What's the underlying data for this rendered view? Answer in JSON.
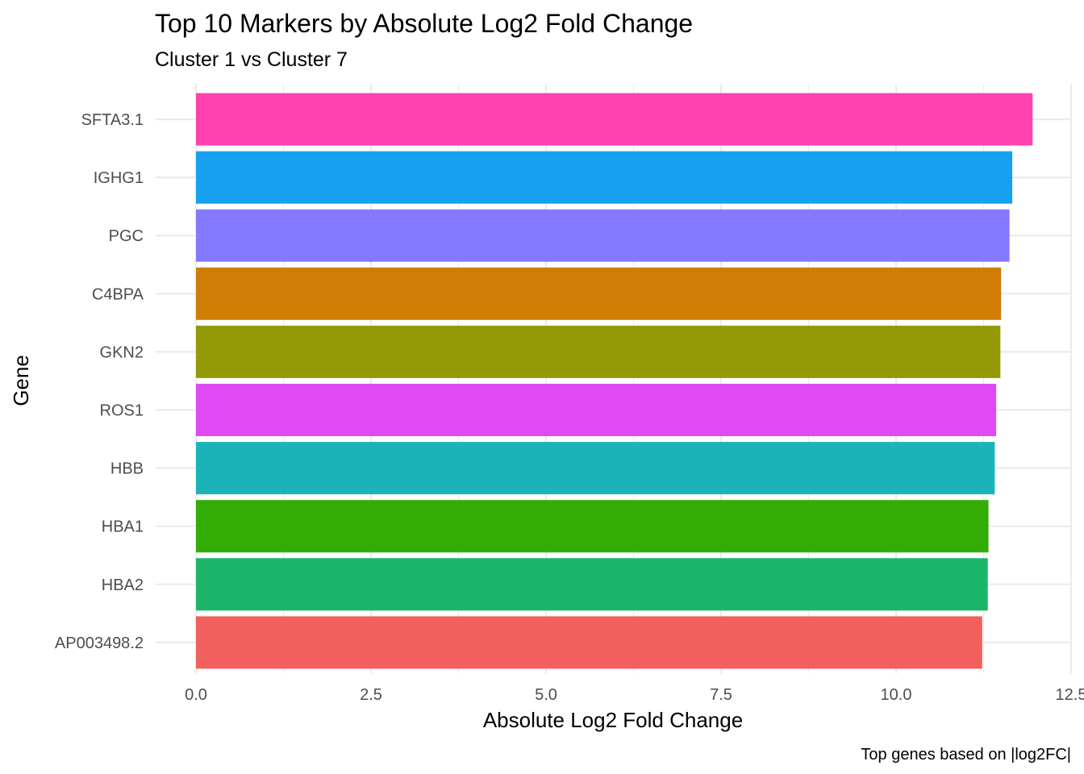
{
  "chart_data": {
    "type": "bar",
    "orientation": "horizontal",
    "title": "Top 10 Markers by Absolute Log2 Fold Change",
    "subtitle": "Cluster 1 vs Cluster 7",
    "xlabel": "Absolute Log2 Fold Change",
    "ylabel": "Gene",
    "caption": "Top genes based on |log2FC|",
    "xlim": [
      0,
      12.5
    ],
    "xticks": [
      0.0,
      2.5,
      5.0,
      7.5,
      10.0,
      12.5
    ],
    "xtick_labels": [
      "0.0",
      "2.5",
      "5.0",
      "7.5",
      "10.0",
      "12.5"
    ],
    "grid": true,
    "legend": "none",
    "categories": [
      "SFTA3.1",
      "IGHG1",
      "PGC",
      "C4BPA",
      "GKN2",
      "ROS1",
      "HBB",
      "HBA1",
      "HBA2",
      "AP003498.2"
    ],
    "values": [
      11.95,
      11.66,
      11.62,
      11.5,
      11.49,
      11.43,
      11.41,
      11.32,
      11.31,
      11.23
    ],
    "colors": [
      "#FF42AE",
      "#17A0F0",
      "#857AFF",
      "#CF7D05",
      "#949A05",
      "#E04AF5",
      "#1AB4B8",
      "#33AD05",
      "#1BB66A",
      "#F25F5C"
    ]
  }
}
